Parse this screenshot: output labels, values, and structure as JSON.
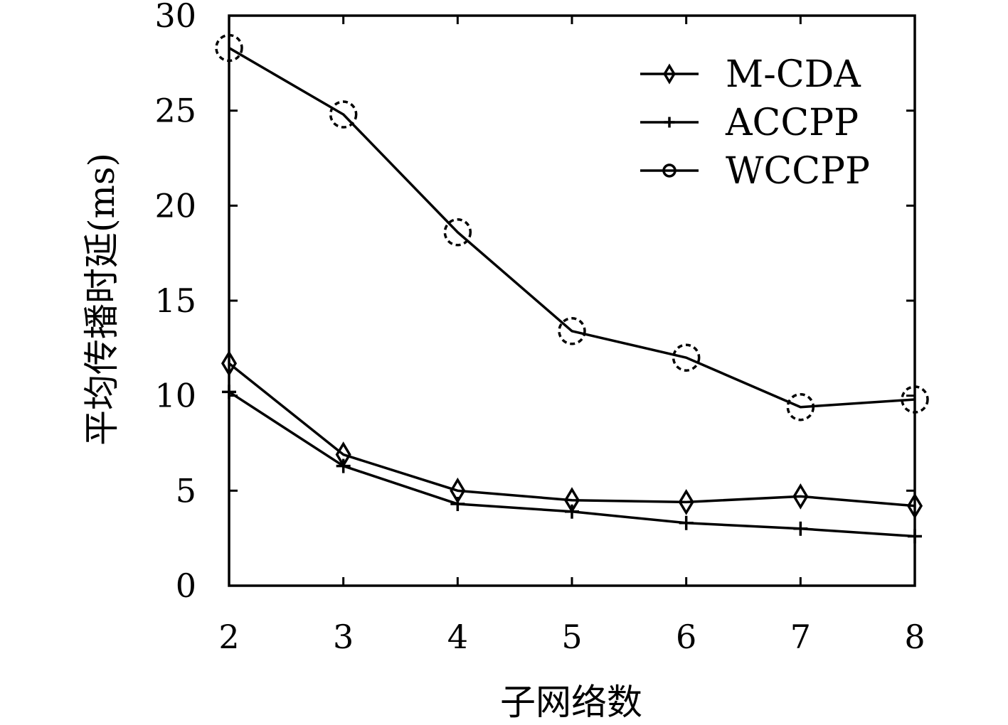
{
  "chart_data": {
    "type": "line",
    "title": "",
    "xlabel": "子网络数",
    "ylabel": "平均传播时延(ms)",
    "x": [
      2,
      3,
      4,
      5,
      6,
      7,
      8
    ],
    "xlim": [
      2,
      8
    ],
    "ylim": [
      0,
      30
    ],
    "xticks": [
      "2",
      "3",
      "4",
      "5",
      "6",
      "7",
      "8"
    ],
    "yticks": [
      "0",
      "5",
      "10",
      "15",
      "20",
      "25",
      "30"
    ],
    "grid": false,
    "legend_position": "top-right",
    "series": [
      {
        "name": "M-CDA",
        "marker": "diamond",
        "values": [
          11.7,
          6.9,
          5.0,
          4.5,
          4.4,
          4.7,
          4.2
        ]
      },
      {
        "name": "ACCPP",
        "marker": "plus",
        "values": [
          10.2,
          6.3,
          4.3,
          3.9,
          3.3,
          3.0,
          2.6
        ]
      },
      {
        "name": "WCCPP",
        "marker": "circle",
        "values": [
          28.3,
          24.8,
          18.6,
          13.4,
          12.0,
          9.4,
          9.8
        ]
      }
    ]
  }
}
